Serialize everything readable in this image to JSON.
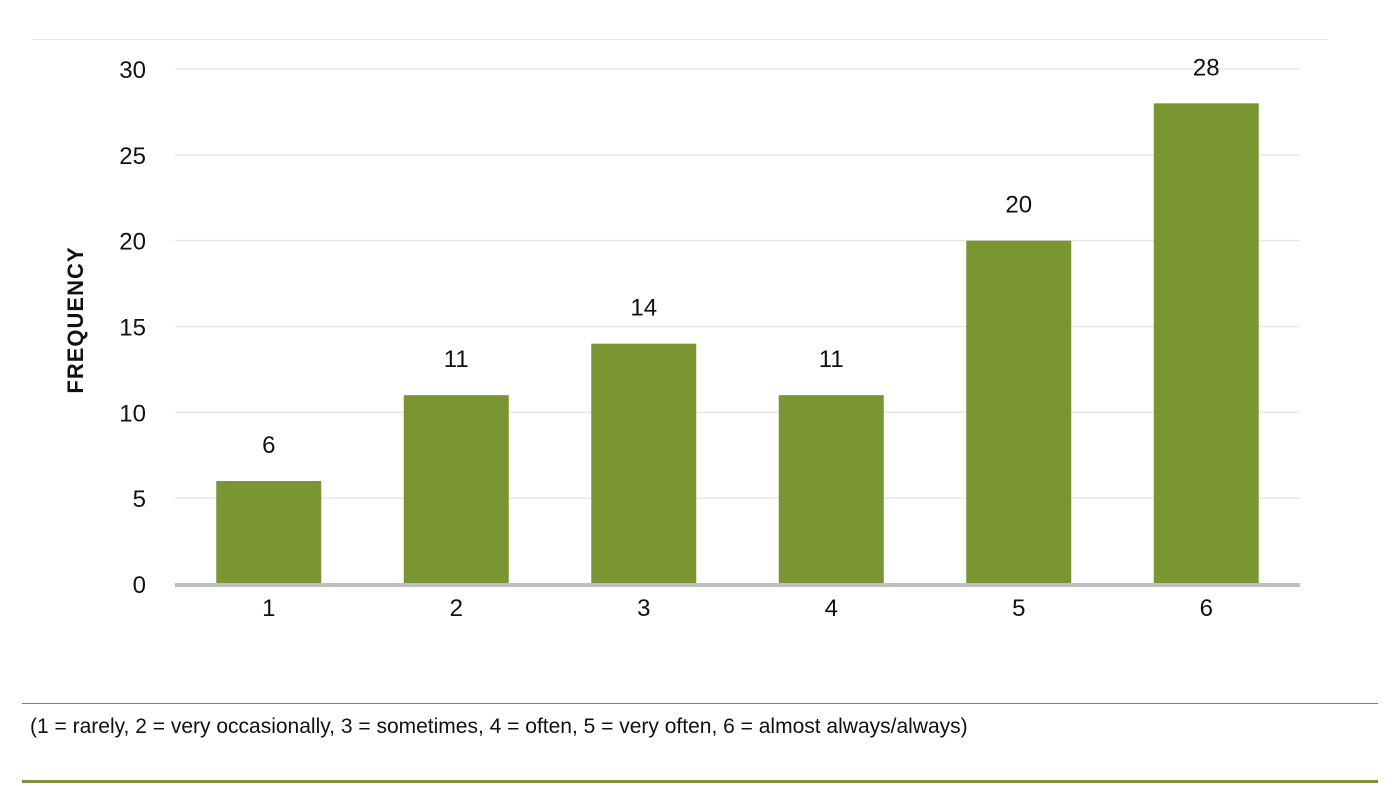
{
  "chart_data": {
    "type": "bar",
    "categories": [
      "1",
      "2",
      "3",
      "4",
      "5",
      "6"
    ],
    "values": [
      6,
      11,
      14,
      11,
      20,
      28
    ],
    "data_labels": [
      "6",
      "11",
      "14",
      "11",
      "20",
      "28"
    ],
    "title": "",
    "xlabel": "",
    "ylabel": "FREQUENCY",
    "ylim": [
      0,
      30
    ],
    "yticks": [
      "0",
      "5",
      "10",
      "15",
      "20",
      "25",
      "30"
    ],
    "grid": true,
    "legend": "none",
    "colors": {
      "bar": "#7a9632",
      "grid": "#e8e8e8",
      "axis": "#bfbfbf",
      "rule_accent": "#7a9632"
    }
  },
  "footnote": "(1 = rarely, 2 = very occasionally, 3 = sometimes, 4 = often, 5 = very often, 6 = almost always/always)"
}
